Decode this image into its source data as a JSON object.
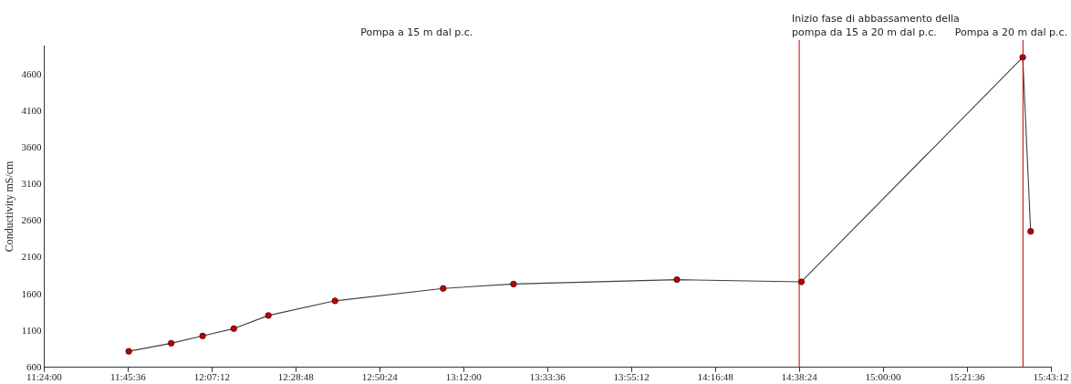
{
  "chart_data": {
    "type": "line",
    "ylabel": "Conductivity mS/cm",
    "annotations": [
      "Pompa a 15 m dal p.c."
    ],
    "x": [
      11.763,
      11.945,
      12.08,
      12.214,
      12.362,
      12.648,
      13.112,
      13.414,
      14.115,
      14.649,
      15.599,
      15.633
    ],
    "series": [
      {
        "color": "#404040",
        "colors": [
          "#c00000",
          "#c00000",
          "#c00000",
          "#c00000",
          "#c00000",
          "#c00000",
          "#c00000",
          "#c00000",
          "#c00000",
          "#c00000",
          "#c00000",
          "#c00000"
        ],
        "values": [
          820,
          930,
          1030,
          1130,
          1310,
          1510,
          1680,
          1740,
          1800,
          1770,
          4840,
          2460
        ]
      }
    ],
    "xlim": [
      11.4,
      15.72
    ],
    "xticks": [
      {
        "value": 11.4,
        "label": "11:24:00"
      },
      {
        "value": 11.76,
        "label": "11:45:36"
      },
      {
        "value": 12.12,
        "label": "12:07:12"
      },
      {
        "value": 12.48,
        "label": "12:28:48"
      },
      {
        "value": 12.84,
        "label": "12:50:24"
      },
      {
        "value": 13.2,
        "label": "13:12:00"
      },
      {
        "value": 13.56,
        "label": "13:33:36"
      },
      {
        "value": 13.92,
        "label": "13:55:12"
      },
      {
        "value": 14.28,
        "label": "14:16:48"
      },
      {
        "value": 14.64,
        "label": "14:38:24"
      },
      {
        "value": 15.0,
        "label": "15:00:00"
      },
      {
        "value": 15.36,
        "label": "15:21:36"
      },
      {
        "value": 15.72,
        "label": "15:43:12"
      }
    ],
    "ylim": [
      600,
      5000
    ],
    "yticks": [
      600,
      1100,
      1600,
      2100,
      2600,
      3100,
      3600,
      4100,
      4600
    ],
    "ref_lines": [
      {
        "axis": "x",
        "value": 14.64,
        "label": "Inizio fase di abbassamento della pompa da 15 a 20 m dal p.c.",
        "color": "#c00000"
      },
      {
        "axis": "x",
        "value": 15.6,
        "label": "Pompa a 20 m dal p.c.",
        "color": "#c00000"
      }
    ],
    "grid": false,
    "legend": false,
    "marker": "circle",
    "line_style": "solid"
  }
}
